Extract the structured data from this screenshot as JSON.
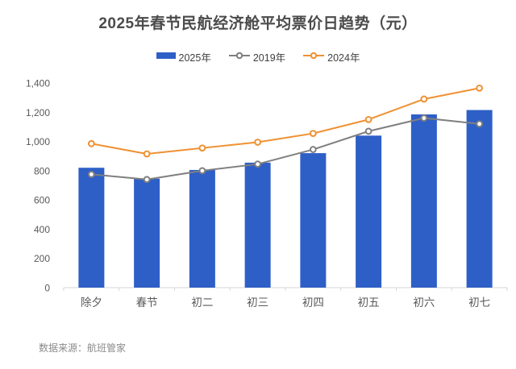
{
  "title": "2025年春节民航经济舱平均票价日趋势（元）",
  "footer": {
    "source": "数据来源：航班管家"
  },
  "colors": {
    "bar_blue": "#2E5FC7",
    "line_gray": "#7F7F7F",
    "line_orange": "#EF9133",
    "axis_line": "#D6D6D6",
    "axis_text": "#595959",
    "title_text": "#4B4B4B"
  },
  "legend": [
    {
      "label": "2025年",
      "type": "bar",
      "color": "#2E5FC7"
    },
    {
      "label": "2019年",
      "type": "line",
      "color": "#7F7F7F"
    },
    {
      "label": "2024年",
      "type": "line",
      "color": "#EF9133"
    }
  ],
  "chart_data": {
    "type": "bar",
    "title": "2025年春节民航经济舱平均票价日趋势（元）",
    "categories": [
      "除夕",
      "春节",
      "初二",
      "初三",
      "初四",
      "初五",
      "初六",
      "初七"
    ],
    "series": [
      {
        "name": "2025年",
        "type": "bar",
        "color": "#2E5FC7",
        "values": [
          820,
          745,
          805,
          855,
          920,
          1040,
          1185,
          1215
        ]
      },
      {
        "name": "2019年",
        "type": "line",
        "color": "#7F7F7F",
        "values": [
          775,
          740,
          800,
          845,
          945,
          1070,
          1160,
          1120
        ]
      },
      {
        "name": "2024年",
        "type": "line",
        "color": "#EF9133",
        "values": [
          985,
          915,
          955,
          995,
          1055,
          1150,
          1290,
          1365
        ]
      }
    ],
    "xlabel": "",
    "ylabel": "",
    "ylim": [
      0,
      1400
    ],
    "y_tick_step": 200,
    "y_tick_labels": [
      "0",
      "200",
      "400",
      "600",
      "800",
      "1,000",
      "1,200",
      "1,400"
    ],
    "grid": false,
    "legend_position": "top"
  }
}
